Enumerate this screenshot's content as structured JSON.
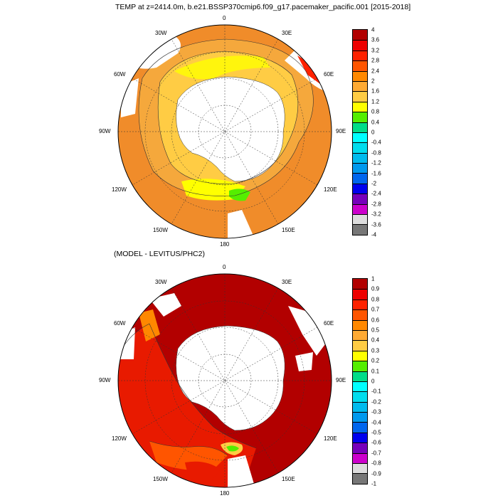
{
  "top_panel": {
    "title": "TEMP at z=2414.0m, b.e21.BSSP370cmip6.f09_g17.pacemaker_pacific.001 [2015-2018]",
    "lon_labels": [
      "0",
      "30E",
      "60E",
      "90E",
      "120E",
      "150E",
      "180",
      "150W",
      "120W",
      "90W",
      "60W",
      "30W"
    ],
    "colorbar": {
      "labels": [
        "4",
        "3.6",
        "3.2",
        "2.8",
        "2.4",
        "2",
        "1.6",
        "1.2",
        "0.8",
        "0.4",
        "0",
        "-0.4",
        "-0.8",
        "-1.2",
        "-1.6",
        "-2",
        "-2.4",
        "-2.8",
        "-3.2",
        "-3.6",
        "-4"
      ],
      "colors": [
        "#b20000",
        "#ee0000",
        "#ff2200",
        "#ff5500",
        "#ff8800",
        "#ffaa33",
        "#ffcc44",
        "#ffff00",
        "#55ee00",
        "#00dd88",
        "#00ffff",
        "#00ddee",
        "#00bbee",
        "#0099ee",
        "#0066ee",
        "#0000ee",
        "#7700bb",
        "#cc00cc",
        "#dddddd",
        "#777777"
      ]
    }
  },
  "bottom_panel": {
    "title": "(MODEL - LEVITUS/PHC2)",
    "lon_labels": [
      "0",
      "30E",
      "60E",
      "90E",
      "120E",
      "150E",
      "180",
      "150W",
      "120W",
      "90W",
      "60W",
      "30W"
    ],
    "colorbar": {
      "labels": [
        "1",
        "0.9",
        "0.8",
        "0.7",
        "0.6",
        "0.5",
        "0.4",
        "0.3",
        "0.2",
        "0.1",
        "0",
        "-0.1",
        "-0.2",
        "-0.3",
        "-0.4",
        "-0.5",
        "-0.6",
        "-0.7",
        "-0.8",
        "-0.9",
        "-1"
      ],
      "colors": [
        "#b20000",
        "#ee0000",
        "#ff2200",
        "#ff5500",
        "#ff8800",
        "#ffaa33",
        "#ffcc44",
        "#ffff00",
        "#55ee00",
        "#00dd88",
        "#00ffff",
        "#00ddee",
        "#00bbee",
        "#0099ee",
        "#0066ee",
        "#0000ee",
        "#7700bb",
        "#cc00cc",
        "#dddddd",
        "#777777"
      ]
    }
  },
  "colors": {
    "ocean_warm": "#f08c2a",
    "ocean_mid": "#f5a83c",
    "ocean_light": "#ffd23a",
    "ocean_yellow": "#ffff00",
    "ocean_green": "#55ee00",
    "diff_dark": "#b20000",
    "diff_red": "#e81a00",
    "land": "#ffffff"
  }
}
